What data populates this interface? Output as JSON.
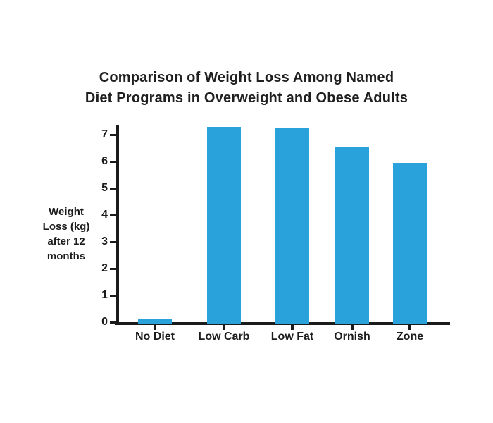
{
  "title": {
    "line1": "Comparison of Weight Loss Among Named",
    "line2": "Diet Programs in Overweight and Obese Adults"
  },
  "y_axis_label_lines": [
    "Weight",
    "Loss (kg)",
    "after 12",
    "months"
  ],
  "chart_data": {
    "type": "bar",
    "title": "Comparison of Weight Loss Among Named Diet Programs in Overweight and Obese Adults",
    "categories": [
      "No Diet",
      "Low Carb",
      "Low Fat",
      "Ornish",
      "Zone"
    ],
    "values": [
      0.1,
      7.3,
      7.25,
      6.55,
      5.95
    ],
    "xlabel": "",
    "ylabel": "Weight Loss (kg) after 12 months",
    "ylim": [
      0,
      7.5
    ],
    "yticks": [
      0,
      1,
      2,
      3,
      4,
      5,
      6,
      7
    ],
    "grid": false,
    "legend": false,
    "bar_color": "#29a2dc",
    "axis_color": "#1b1b1b",
    "text_color": "#1c1c1c",
    "background_color": "#ffffff"
  }
}
